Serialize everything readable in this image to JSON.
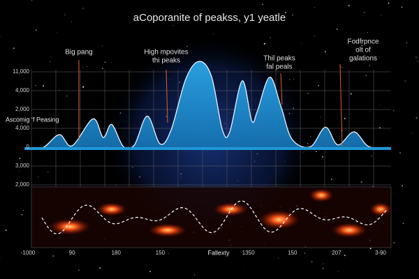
{
  "chart_data": {
    "type": "area",
    "title": "aCoporanite of peakss, y1 yeatle",
    "ylabel": "Ascomig ʻf Peasing",
    "xlabel": "Fallexty",
    "y_labels": [
      "11,000",
      "4,000",
      "2,000",
      "4,000",
      "0",
      "3,000",
      "2,000"
    ],
    "categories": [
      "-1000",
      "90",
      "180",
      "150",
      null,
      "1350",
      "150",
      "207",
      "3-90"
    ],
    "x": [
      0,
      5,
      9.5,
      13,
      18.7,
      21.5,
      23.8,
      27,
      30,
      33.5,
      37,
      40,
      44,
      47.6,
      51,
      54,
      56,
      59.4,
      62,
      63.5,
      66.9,
      70,
      73,
      78,
      82.1,
      85.5,
      89.9,
      94,
      100
    ],
    "values": [
      1,
      1,
      15,
      3,
      32,
      12,
      26,
      2,
      4,
      35,
      5,
      20,
      75,
      94,
      78,
      20,
      18,
      73,
      30,
      40,
      77,
      45,
      10,
      2,
      23,
      4,
      18,
      2,
      1
    ],
    "xlim": [
      0,
      100
    ],
    "ylim": [
      0,
      100
    ],
    "color": "#1e98d8",
    "annotations": [
      [
        "Big pang"
      ],
      [
        "High mpovites",
        "thi peaks"
      ],
      [
        "Thil peaks",
        "fal peals"
      ],
      [
        "Fodfrpnce",
        "olt of",
        "galations"
      ]
    ]
  }
}
